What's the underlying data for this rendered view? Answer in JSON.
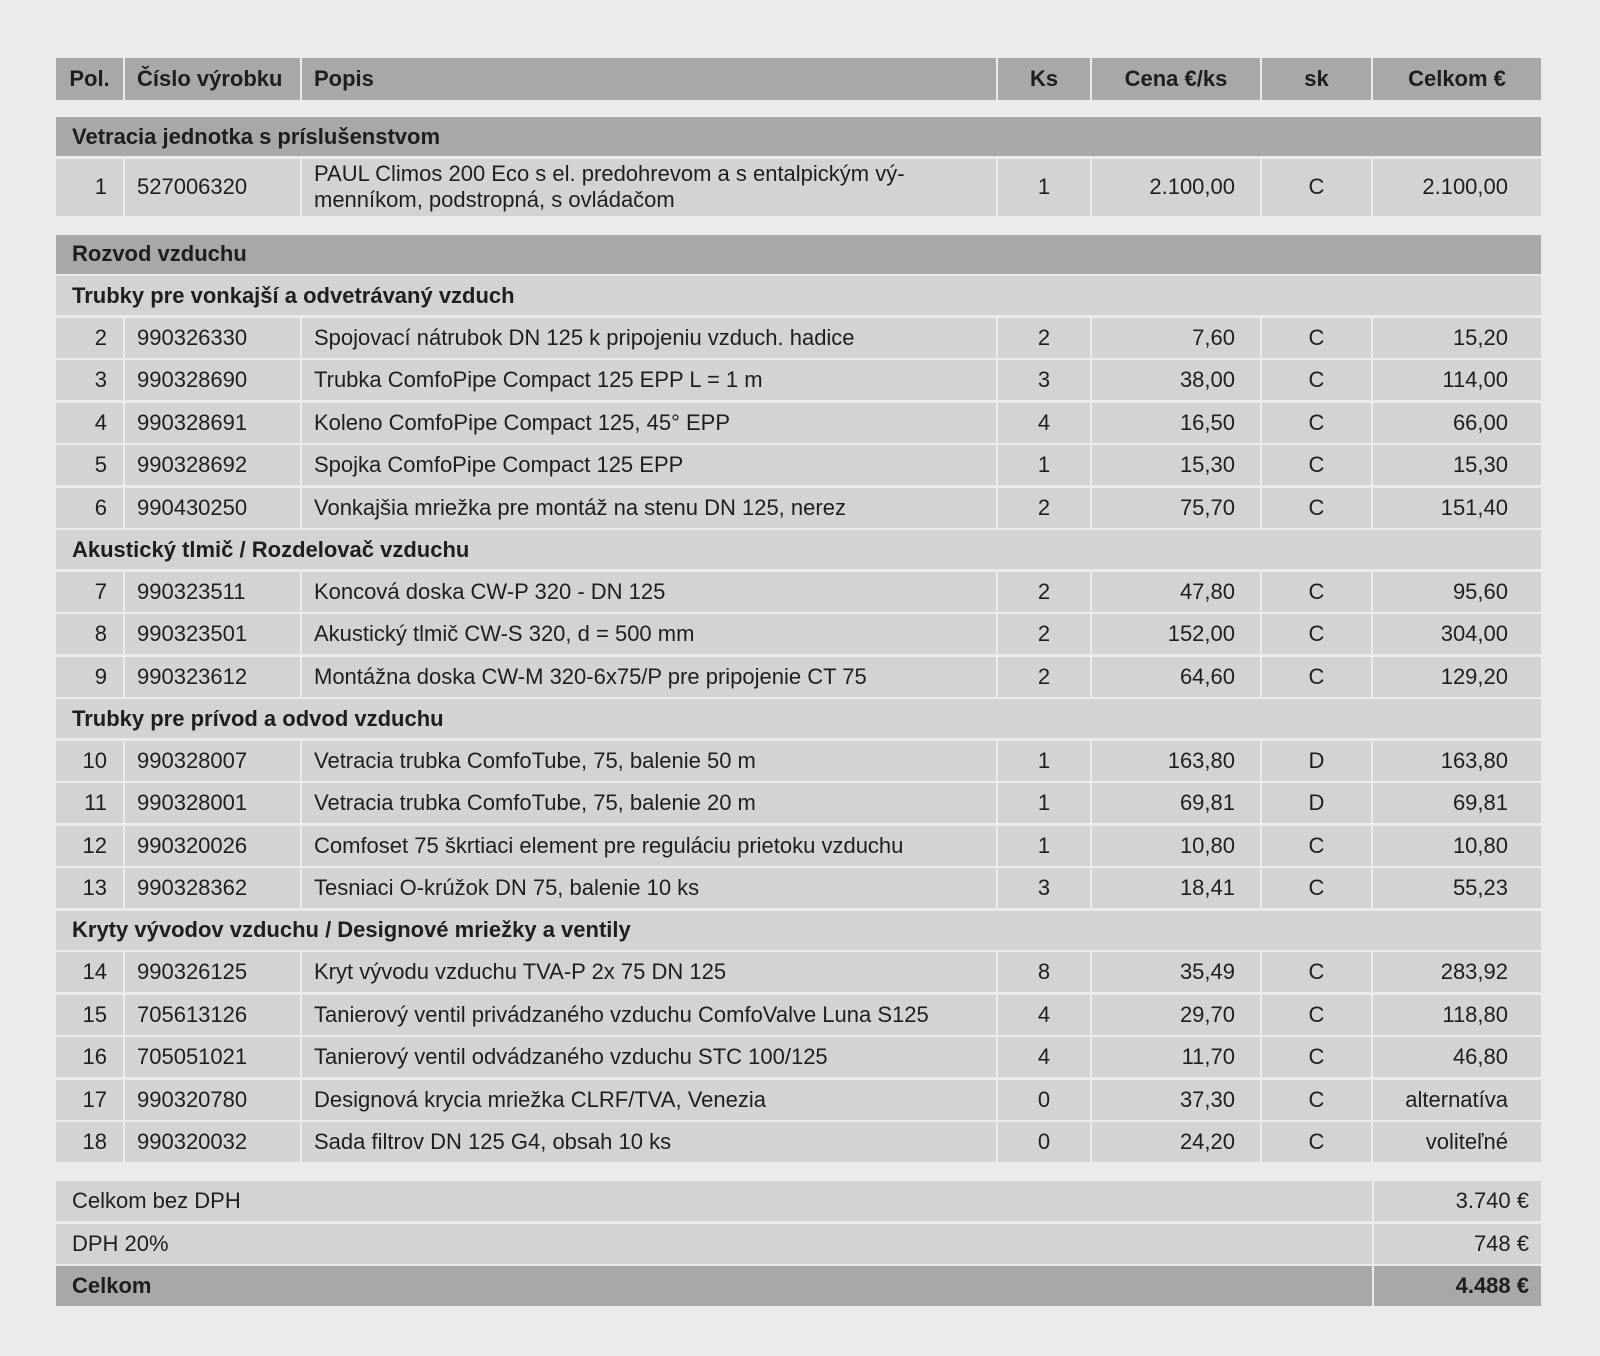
{
  "header": {
    "pol": "Pol.",
    "number": "Číslo výrobku",
    "description": "Popis",
    "qty": "Ks",
    "unit_price": "Cena €/ks",
    "sk": "sk",
    "total": "Celkom €"
  },
  "sections": [
    {
      "title": "Vetracia jednotka s príslušenstvom",
      "items": [
        {
          "pol": "1",
          "number": "527006320",
          "description": "PAUL Climos 200 Eco s el. predohrevom a s entalpickým vý-menníkom, podstropná, s ovládačom",
          "qty": "1",
          "price": "2.100,00",
          "sk": "C",
          "total": "2.100,00"
        }
      ]
    },
    {
      "title": "Rozvod vzduchu",
      "groups": [
        {
          "title": "Trubky pre vonkajší a odvetrávaný vzduch",
          "items": [
            {
              "pol": "2",
              "number": "990326330",
              "description": "Spojovací nátrubok DN 125 k pripojeniu vzduch. hadice",
              "qty": "2",
              "price": "7,60",
              "sk": "C",
              "total": "15,20"
            },
            {
              "pol": "3",
              "number": "990328690",
              "description": "Trubka ComfoPipe Compact 125 EPP L = 1 m",
              "qty": "3",
              "price": "38,00",
              "sk": "C",
              "total": "114,00"
            },
            {
              "pol": "4",
              "number": "990328691",
              "description": "Koleno ComfoPipe Compact 125, 45° EPP",
              "qty": "4",
              "price": "16,50",
              "sk": "C",
              "total": "66,00"
            },
            {
              "pol": "5",
              "number": "990328692",
              "description": "Spojka ComfoPipe Compact 125 EPP",
              "qty": "1",
              "price": "15,30",
              "sk": "C",
              "total": "15,30"
            },
            {
              "pol": "6",
              "number": "990430250",
              "description": "Vonkajšia mriežka pre montáž na stenu DN 125, nerez",
              "qty": "2",
              "price": "75,70",
              "sk": "C",
              "total": "151,40"
            }
          ]
        },
        {
          "title": "Akustický tlmič / Rozdelovač vzduchu",
          "items": [
            {
              "pol": "7",
              "number": "990323511",
              "description": "Koncová doska CW-P 320 - DN 125",
              "qty": "2",
              "price": "47,80",
              "sk": "C",
              "total": "95,60"
            },
            {
              "pol": "8",
              "number": "990323501",
              "description": "Akustický tlmič CW-S 320, d = 500 mm",
              "qty": "2",
              "price": "152,00",
              "sk": "C",
              "total": "304,00"
            },
            {
              "pol": "9",
              "number": "990323612",
              "description": "Montážna doska CW-M 320-6x75/P pre pripojenie CT 75",
              "qty": "2",
              "price": "64,60",
              "sk": "C",
              "total": "129,20"
            }
          ]
        },
        {
          "title": "Trubky pre prívod a odvod vzduchu",
          "items": [
            {
              "pol": "10",
              "number": "990328007",
              "description": "Vetracia trubka ComfoTube, 75, balenie 50 m",
              "qty": "1",
              "price": "163,80",
              "sk": "D",
              "total": "163,80"
            },
            {
              "pol": "11",
              "number": "990328001",
              "description": "Vetracia trubka ComfoTube, 75, balenie 20 m",
              "qty": "1",
              "price": "69,81",
              "sk": "D",
              "total": "69,81"
            },
            {
              "pol": "12",
              "number": "990320026",
              "description": "Comfoset 75 škrtiaci element pre reguláciu prietoku vzduchu",
              "qty": "1",
              "price": "10,80",
              "sk": "C",
              "total": "10,80"
            },
            {
              "pol": "13",
              "number": "990328362",
              "description": "Tesniaci O-krúžok DN 75, balenie 10 ks",
              "qty": "3",
              "price": "18,41",
              "sk": "C",
              "total": "55,23"
            }
          ]
        },
        {
          "title": "Kryty vývodov vzduchu / Designové mriežky a ventily",
          "items": [
            {
              "pol": "14",
              "number": "990326125",
              "description": "Kryt vývodu vzduchu TVA-P 2x 75 DN 125",
              "qty": "8",
              "price": "35,49",
              "sk": "C",
              "total": "283,92"
            },
            {
              "pol": "15",
              "number": "705613126",
              "description": "Tanierový ventil privádzaného vzduchu ComfoValve Luna S125",
              "qty": "4",
              "price": "29,70",
              "sk": "C",
              "total": "118,80"
            },
            {
              "pol": "16",
              "number": "705051021",
              "description": "Tanierový ventil odvádzaného vzduchu STC 100/125",
              "qty": "4",
              "price": "11,70",
              "sk": "C",
              "total": "46,80"
            },
            {
              "pol": "17",
              "number": "990320780",
              "description": "Designová krycia mriežka CLRF/TVA, Venezia",
              "qty": "0",
              "price": "37,30",
              "sk": "C",
              "total": "alternatíva"
            },
            {
              "pol": "18",
              "number": "990320032",
              "description": "Sada filtrov DN 125 G4, obsah 10 ks",
              "qty": "0",
              "price": "24,20",
              "sk": "C",
              "total": "voliteľné"
            }
          ]
        }
      ]
    }
  ],
  "summary": {
    "net_label": "Celkom bez DPH",
    "net_value": "3.740 €",
    "vat_label": "DPH 20%",
    "vat_value": "748 €",
    "grand_label": "Celkom",
    "grand_value": "4.488 €"
  },
  "colors": {
    "page_bg": "#ebebec",
    "header_bg": "#a7a8aa",
    "row_bg": "#d2d3d4"
  }
}
